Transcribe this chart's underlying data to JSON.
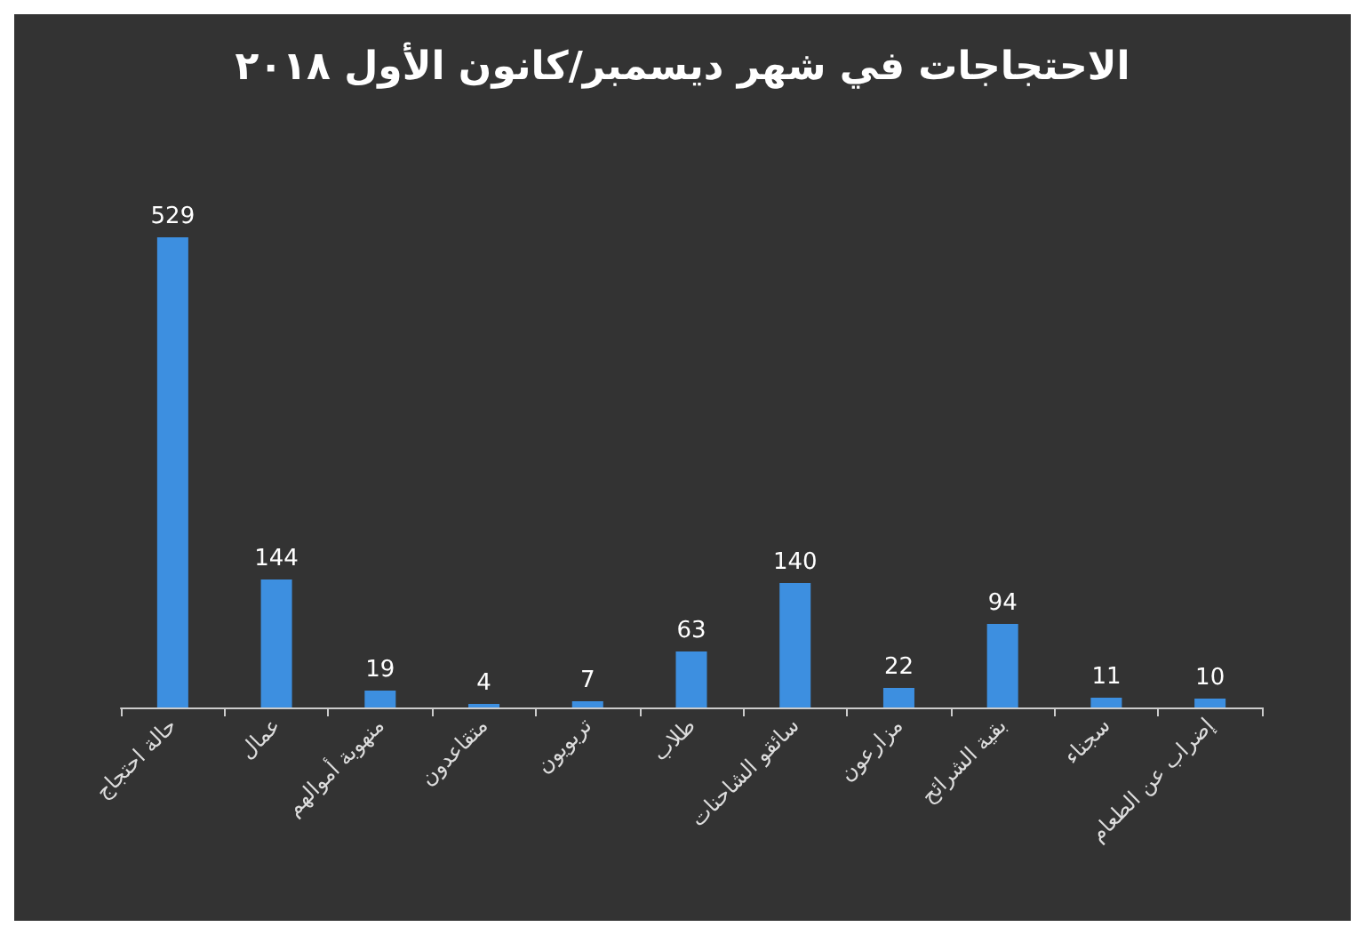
{
  "chart_data": {
    "type": "bar",
    "title": "الاحتجاجات في شهر ديسمبر/كانون الأول ٢٠١٨",
    "categories": [
      "حالة احتجاج",
      "عمال",
      "منهوبة أموالهم",
      "متقاعدون",
      "تربويون",
      "طلاب",
      "سائقو الشاحنات",
      "مزارعون",
      "بقية الشرائح",
      "سجناء",
      "إضراب عن الطعام"
    ],
    "values": [
      529,
      144,
      19,
      4,
      7,
      63,
      140,
      22,
      94,
      11,
      10
    ],
    "color": "#3d8fe0",
    "data_labels": true,
    "grid": false
  }
}
